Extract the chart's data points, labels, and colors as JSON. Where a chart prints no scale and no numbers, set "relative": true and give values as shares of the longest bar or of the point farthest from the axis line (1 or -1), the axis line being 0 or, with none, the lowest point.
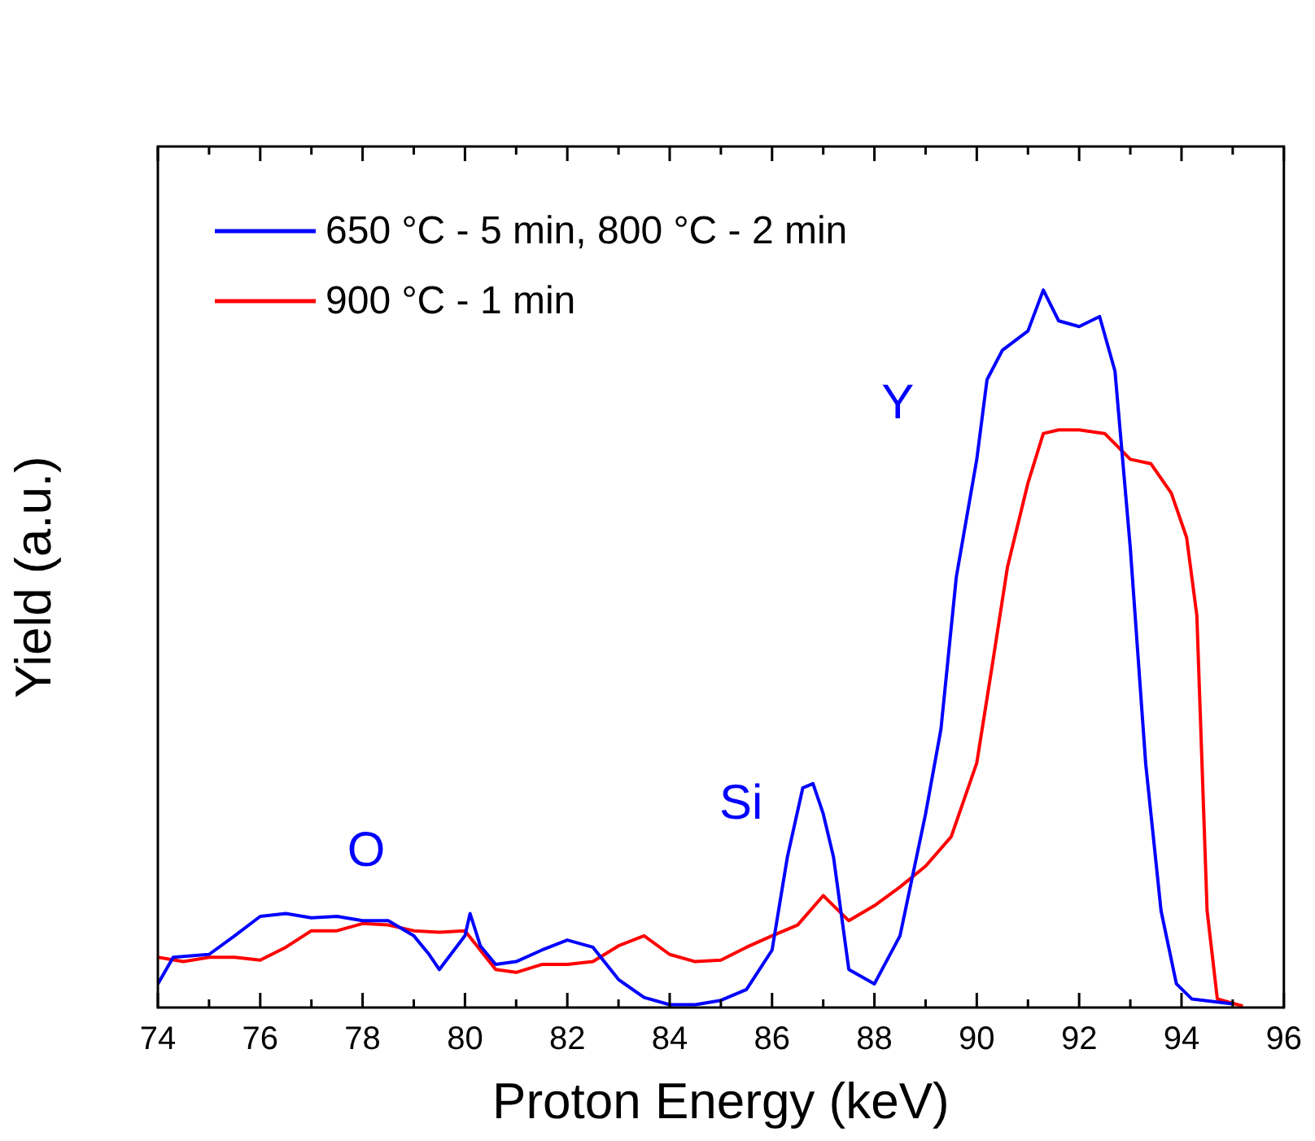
{
  "chart_data": {
    "type": "line",
    "xlabel": "Proton Energy (keV)",
    "ylabel": "Yield (a.u.)",
    "relative": true,
    "legend": "top left",
    "marker": "none",
    "line_style": "solid",
    "grid": false,
    "xlim": [
      74,
      96
    ],
    "xticks": [
      74,
      76,
      78,
      80,
      82,
      84,
      86,
      88,
      90,
      92,
      94,
      96
    ],
    "annotations": [
      "O",
      "Si",
      "Y"
    ],
    "series": [
      {
        "name": "650 °C - 5 min, 800 °C - 2 min",
        "color": "#0000ff",
        "x": [
          74,
          74.3,
          75,
          75.5,
          76,
          76.5,
          77,
          77.5,
          78,
          78.5,
          79,
          79.3,
          79.5,
          80,
          80.1,
          80.3,
          80.6,
          81,
          81.5,
          82,
          82.5,
          83,
          83.5,
          84,
          84.5,
          85,
          85.5,
          86,
          86.3,
          86.6,
          86.8,
          87,
          87.2,
          87.5,
          88,
          88.5,
          89,
          89.3,
          89.6,
          90,
          90.2,
          90.5,
          91,
          91.3,
          91.6,
          92,
          92.4,
          92.7,
          93,
          93.3,
          93.6,
          93.9,
          94.2,
          95
        ],
        "values": [
          0.033,
          0.07,
          0.074,
          0.1,
          0.127,
          0.131,
          0.125,
          0.127,
          0.121,
          0.121,
          0.1,
          0.074,
          0.053,
          0.1,
          0.131,
          0.086,
          0.06,
          0.064,
          0.08,
          0.094,
          0.084,
          0.039,
          0.014,
          0.004,
          0.004,
          0.01,
          0.025,
          0.08,
          0.21,
          0.306,
          0.312,
          0.27,
          0.21,
          0.053,
          0.033,
          0.1,
          0.27,
          0.388,
          0.6,
          0.764,
          0.875,
          0.916,
          0.943,
          1,
          0.957,
          0.949,
          0.963,
          0.887,
          0.64,
          0.34,
          0.135,
          0.033,
          0.012,
          0.005
        ]
      },
      {
        "name": "900 °C - 1 min",
        "color": "#ff0000",
        "x": [
          74,
          74.5,
          75,
          75.5,
          76,
          76.5,
          77,
          77.5,
          78,
          78.5,
          79,
          79.5,
          80,
          80.3,
          80.6,
          81,
          81.5,
          82,
          82.5,
          83,
          83.5,
          84,
          84.5,
          85,
          85.5,
          86,
          86.5,
          87,
          87.5,
          88,
          88.5,
          89,
          89.5,
          90,
          90.3,
          90.6,
          91,
          91.3,
          91.6,
          92,
          92.5,
          93,
          93.4,
          93.8,
          94.1,
          94.3,
          94.5,
          94.7,
          95.2
        ],
        "values": [
          0.07,
          0.064,
          0.07,
          0.07,
          0.066,
          0.084,
          0.107,
          0.107,
          0.117,
          0.115,
          0.107,
          0.105,
          0.107,
          0.08,
          0.053,
          0.049,
          0.06,
          0.06,
          0.064,
          0.086,
          0.1,
          0.074,
          0.064,
          0.066,
          0.084,
          0.1,
          0.115,
          0.156,
          0.121,
          0.142,
          0.168,
          0.197,
          0.238,
          0.341,
          0.476,
          0.614,
          0.731,
          0.8,
          0.805,
          0.805,
          0.8,
          0.764,
          0.758,
          0.717,
          0.655,
          0.546,
          0.135,
          0.012,
          0.002
        ]
      }
    ]
  }
}
